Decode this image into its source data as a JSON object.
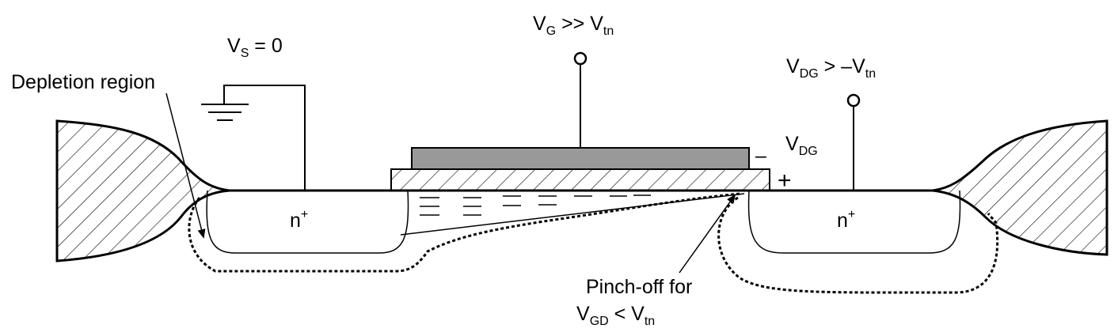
{
  "labels": {
    "vs_main": "V",
    "vs_sub": "S",
    "vs_rest": " = 0",
    "vg_main": "V",
    "vg_sub": "G",
    "vg_mid": " >> V",
    "vg_sub2": "tn",
    "vdg_top_main": "V",
    "vdg_top_sub": "DG",
    "vdg_top_mid": " > –V",
    "vdg_top_sub2": "tn",
    "vdg_main": "V",
    "vdg_sub": "DG",
    "minus": "–",
    "plus": "+",
    "depletion": "Depletion region",
    "n_main": "n",
    "n_sup": "+",
    "pinch_line1": "Pinch-off for",
    "pinch_main": "V",
    "pinch_sub": "GD",
    "pinch_mid": " < V",
    "pinch_sub2": "tn"
  },
  "colors": {
    "stroke": "#000000",
    "gate": "#999999",
    "background": "#ffffff"
  },
  "icons": {
    "ground": "ground-icon",
    "terminal": "terminal-circle-icon"
  }
}
